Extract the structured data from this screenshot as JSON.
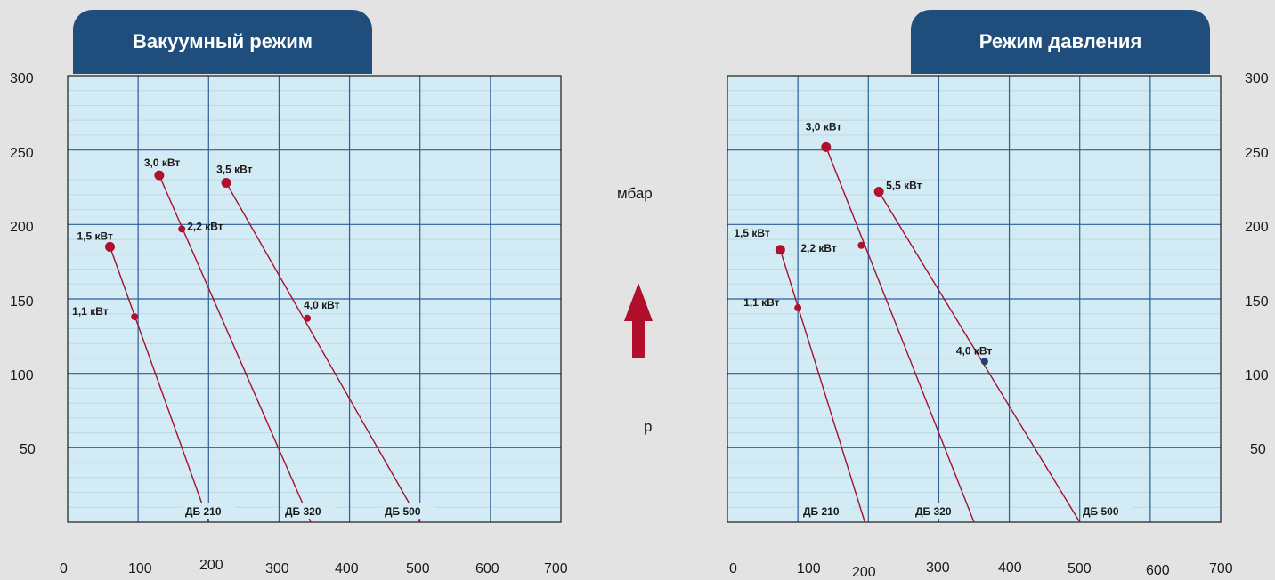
{
  "chart_data": [
    {
      "type": "line",
      "title": "Вакуумный режим",
      "y_ticks": [
        "300",
        "250",
        "200",
        "150",
        "100",
        "50"
      ],
      "x_ticks": [
        "0",
        "100",
        "200",
        "300",
        "400",
        "500",
        "600",
        "700"
      ],
      "ylim": [
        0,
        300
      ],
      "xlim": [
        0,
        700
      ],
      "grid": true,
      "lines": [
        {
          "name": "ДБ 210",
          "x": [
            60,
            200
          ],
          "y": [
            185,
            0
          ]
        },
        {
          "name": "ДБ 320",
          "x": [
            130,
            345
          ],
          "y": [
            233,
            0
          ]
        },
        {
          "name": "ДБ 500",
          "x": [
            225,
            500
          ],
          "y": [
            228,
            0
          ]
        }
      ],
      "points": [
        {
          "label": "1,5 кВт",
          "x": 60,
          "y": 185,
          "color": "#b0102c",
          "size": "large"
        },
        {
          "label": "1,1 кВт",
          "x": 95,
          "y": 138,
          "color": "#b0102c",
          "size": "small"
        },
        {
          "label": "3,0 кВт",
          "x": 130,
          "y": 233,
          "color": "#b0102c",
          "size": "large"
        },
        {
          "label": "2,2 кВт",
          "x": 162,
          "y": 197,
          "color": "#b0102c",
          "size": "small"
        },
        {
          "label": "3,5 кВт",
          "x": 225,
          "y": 228,
          "color": "#b0102c",
          "size": "large"
        },
        {
          "label": "4,0 кВт",
          "x": 340,
          "y": 137,
          "color": "#b0102c",
          "size": "small"
        }
      ]
    },
    {
      "type": "line",
      "title": "Режим давления",
      "y_ticks": [
        "300",
        "250",
        "200",
        "150",
        "100",
        "50"
      ],
      "x_ticks": [
        "0",
        "100",
        "200",
        "300",
        "400",
        "500",
        "600",
        "700"
      ],
      "ylim": [
        0,
        300
      ],
      "xlim": [
        0,
        700
      ],
      "grid": true,
      "lines": [
        {
          "name": "ДБ 210",
          "x": [
            75,
            195
          ],
          "y": [
            183,
            0
          ]
        },
        {
          "name": "ДБ 320",
          "x": [
            140,
            350
          ],
          "y": [
            252,
            0
          ]
        },
        {
          "name": "ДБ 500",
          "x": [
            215,
            500
          ],
          "y": [
            222,
            0
          ]
        }
      ],
      "points": [
        {
          "label": "1,5 кВт",
          "x": 75,
          "y": 183,
          "color": "#b0102c",
          "size": "large"
        },
        {
          "label": "1,1 кВт",
          "x": 100,
          "y": 144,
          "color": "#b0102c",
          "size": "small"
        },
        {
          "label": "3,0 кВт",
          "x": 140,
          "y": 252,
          "color": "#b0102c",
          "size": "large"
        },
        {
          "label": "2,2 кВт",
          "x": 190,
          "y": 186,
          "color": "#b0102c",
          "size": "small"
        },
        {
          "label": "5,5 кВт",
          "x": 215,
          "y": 222,
          "color": "#b0102c",
          "size": "large"
        },
        {
          "label": "4,0 кВт",
          "x": 365,
          "y": 108,
          "color": "#1f3f77",
          "size": "small"
        }
      ]
    }
  ],
  "middle": {
    "unit_label": "мбар",
    "axis_symbol": "p"
  },
  "colors": {
    "plot_bg": "#d2ebf4",
    "grid_major": "#2f5f93",
    "grid_minor": "#bcd9e8",
    "line": "#a3122f",
    "tab_bg": "#1f4e7c",
    "arrow": "#b0102c"
  }
}
